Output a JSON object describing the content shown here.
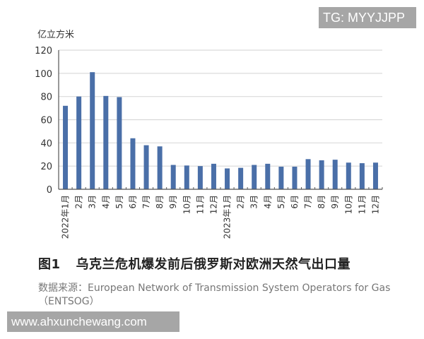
{
  "watermarks": {
    "top": "TG: MYYJJPP",
    "bottom": "www.ahxunchewang.com"
  },
  "caption": {
    "figure_number": "图1",
    "title": "乌克兰危机爆发前后俄罗斯对欧洲天然气出口量",
    "source": "数据来源：European Network of Transmission System Operators for Gas（ENTSOG）"
  },
  "colors": {
    "bar": "#4a6fa8",
    "grid": "#d9d9d9",
    "axis": "#555555"
  },
  "chart_data": {
    "type": "bar",
    "title": "乌克兰危机爆发前后俄罗斯对欧洲天然气出口量",
    "xlabel": "",
    "ylabel": "亿立方米",
    "ylim": [
      0,
      120
    ],
    "yticks": [
      0,
      20,
      40,
      60,
      80,
      100,
      120
    ],
    "grid": true,
    "legend": null,
    "categories": [
      "2022年1月",
      "2月",
      "3月",
      "4月",
      "5月",
      "6月",
      "7月",
      "8月",
      "9月",
      "10月",
      "11月",
      "12月",
      "2023年1月",
      "2月",
      "3月",
      "4月",
      "5月",
      "6月",
      "7月",
      "8月",
      "9月",
      "10月",
      "11月",
      "12月"
    ],
    "series": [
      {
        "name": "俄罗斯对欧洲天然气出口量",
        "values": [
          72,
          80,
          101,
          80.5,
          79.5,
          44,
          38,
          37,
          21,
          20.5,
          20,
          22,
          18,
          18.5,
          21,
          22,
          19.5,
          19.5,
          26,
          25,
          25.5,
          23,
          22.5,
          23
        ]
      }
    ]
  }
}
